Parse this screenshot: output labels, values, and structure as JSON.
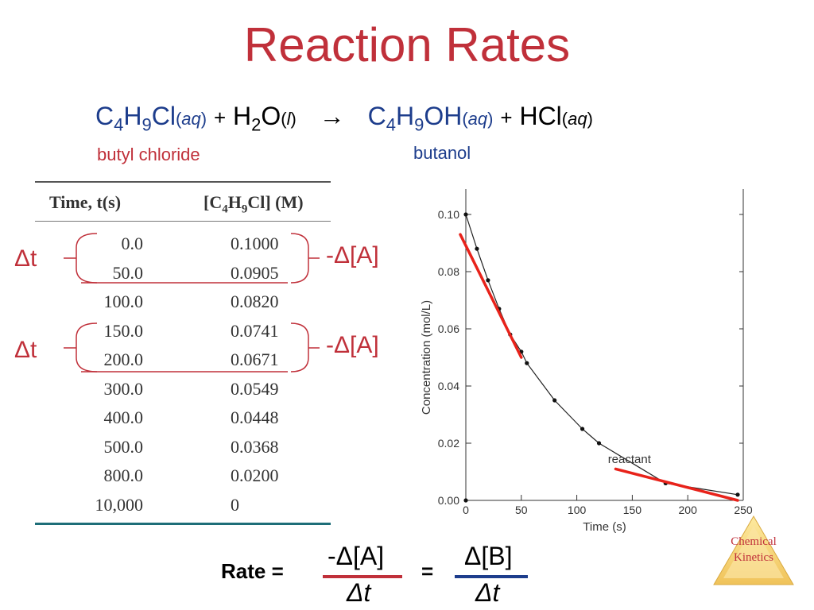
{
  "title": "Reaction Rates",
  "equation": {
    "r1_a": "C",
    "r1_s1": "4",
    "r1_b": "H",
    "r1_s2": "9",
    "r1_c": "Cl",
    "r1_phase": "aq",
    "plus1": "+",
    "r2_a": "H",
    "r2_s1": "2",
    "r2_b": "O",
    "r2_phase": "l",
    "arrow": "→",
    "p1_a": "C",
    "p1_s1": "4",
    "p1_b": "H",
    "p1_s2": "9",
    "p1_c": "OH",
    "p1_phase": "aq",
    "plus2": "+",
    "p2_a": "HCl",
    "p2_phase": "aq"
  },
  "captions": {
    "reactant": "butyl chloride",
    "product": "butanol"
  },
  "table": {
    "head_time": "Time, t(s)",
    "head_conc_a": "[C",
    "head_conc_s1": "4",
    "head_conc_b": "H",
    "head_conc_s2": "9",
    "head_conc_c": "Cl] (M)",
    "rows": [
      {
        "t": "0.0",
        "c": "0.1000"
      },
      {
        "t": "50.0",
        "c": "0.0905"
      },
      {
        "t": "100.0",
        "c": "0.0820"
      },
      {
        "t": "150.0",
        "c": "0.0741"
      },
      {
        "t": "200.0",
        "c": "0.0671"
      },
      {
        "t": "300.0",
        "c": "0.0549"
      },
      {
        "t": "400.0",
        "c": "0.0448"
      },
      {
        "t": "500.0",
        "c": "0.0368"
      },
      {
        "t": "800.0",
        "c": "0.0200"
      },
      {
        "t": "10,000",
        "c": "0"
      }
    ]
  },
  "annotations": {
    "delta_t": "Δt",
    "delta_a": "-Δ[A]"
  },
  "rate": {
    "label": "Rate =",
    "num1": "-Δ[A]",
    "den1": "Δt",
    "equals": "=",
    "num2": "Δ[B]",
    "den2": "Δt"
  },
  "badge": {
    "line1": "Chemical",
    "line2": "Kinetics"
  },
  "colors": {
    "title": "#c0303a",
    "blue": "#1d3d8c",
    "tangent": "#e8221a",
    "teal": "#1e6e78"
  },
  "chart_data": {
    "type": "scatter",
    "xlabel": "Time (s)",
    "ylabel": "Concentration (mol/L)",
    "xlim": [
      0,
      250
    ],
    "ylim": [
      0,
      0.1
    ],
    "xticks": [
      "0",
      "50",
      "100",
      "150",
      "200",
      "250"
    ],
    "yticks": [
      "0.00",
      "0.02",
      "0.04",
      "0.06",
      "0.08",
      "0.10"
    ],
    "points": [
      {
        "x": 0,
        "y": 0.1
      },
      {
        "x": 10,
        "y": 0.088
      },
      {
        "x": 20,
        "y": 0.077
      },
      {
        "x": 30,
        "y": 0.067
      },
      {
        "x": 40,
        "y": 0.058
      },
      {
        "x": 50,
        "y": 0.052
      },
      {
        "x": 55,
        "y": 0.048
      },
      {
        "x": 80,
        "y": 0.035
      },
      {
        "x": 105,
        "y": 0.025
      },
      {
        "x": 120,
        "y": 0.02
      },
      {
        "x": 180,
        "y": 0.006
      },
      {
        "x": 245,
        "y": 0.002
      },
      {
        "x": 0,
        "y": 0.0
      }
    ],
    "curve_label": "reactant",
    "tangents": [
      {
        "x1": -5,
        "y1": 0.093,
        "x2": 50,
        "y2": 0.05
      },
      {
        "x1": 135,
        "y1": 0.011,
        "x2": 245,
        "y2": 0.0
      }
    ]
  }
}
